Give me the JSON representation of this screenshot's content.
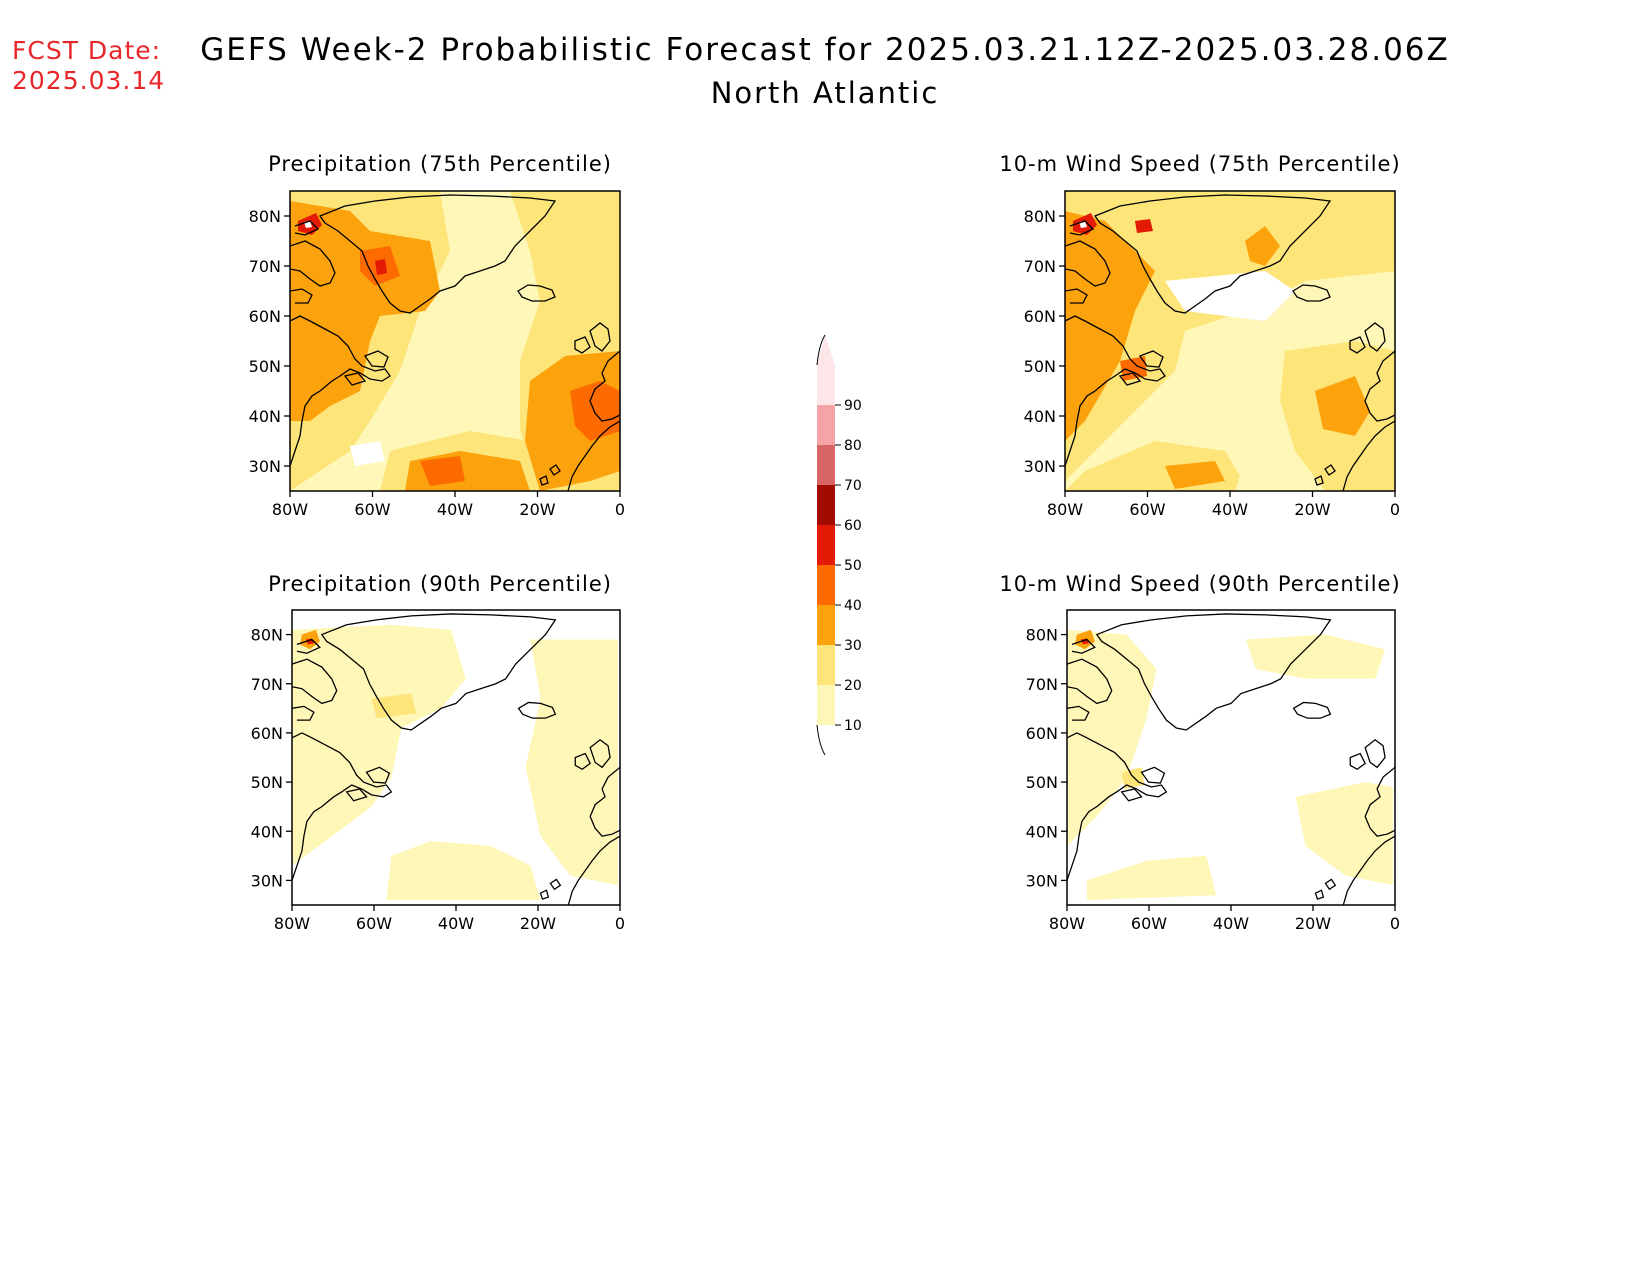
{
  "header": {
    "fcst_label": "FCST Date:",
    "fcst_date": "2025.03.14",
    "title": "GEFS Week-2 Probabilistic Forecast for 2025.03.21.12Z-2025.03.28.06Z",
    "subtitle": "North Atlantic"
  },
  "axes": {
    "lat_ticks": [
      "30N",
      "40N",
      "50N",
      "60N",
      "70N",
      "80N"
    ],
    "lon_ticks": [
      "80W",
      "60W",
      "40W",
      "20W",
      "0"
    ]
  },
  "panels": [
    {
      "id": "precip75",
      "title": "Precipitation (75th Percentile)"
    },
    {
      "id": "wind75",
      "title": "10-m Wind Speed (75th Percentile)"
    },
    {
      "id": "precip90",
      "title": "Precipitation (90th Percentile)"
    },
    {
      "id": "wind90",
      "title": "10-m Wind Speed (90th Percentile)"
    }
  ],
  "colorbar": {
    "labels": [
      "10",
      "20",
      "30",
      "40",
      "50",
      "60",
      "70",
      "80",
      "90"
    ],
    "colors": [
      "#fff7b8",
      "#fde57a",
      "#fba20c",
      "#fc6a00",
      "#e31a05",
      "#a30a00",
      "#d96464",
      "#f5a3a6",
      "#fde6e8"
    ]
  }
}
